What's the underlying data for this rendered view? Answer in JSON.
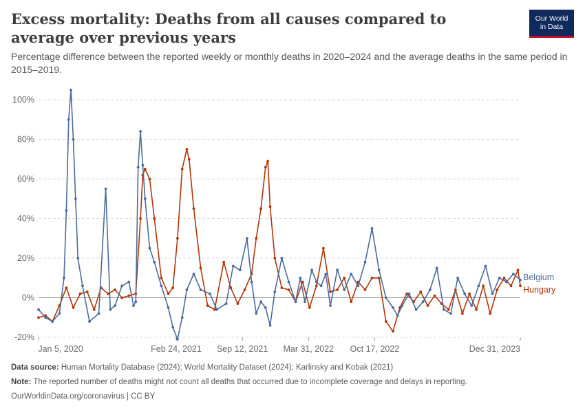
{
  "header": {
    "title": "Excess mortality: Deaths from all causes compared to average over previous years",
    "subtitle": "Percentage difference between the reported weekly or monthly deaths in 2020–2024 and the average deaths in the same period in 2015–2019.",
    "logo_line1": "Our World",
    "logo_line2": "in Data"
  },
  "footer": {
    "source_label": "Data source:",
    "source_text": "Human Mortality Database (2024); World Mortality Dataset (2024); Karlinsky and Kobak (2021)",
    "note_label": "Note:",
    "note_text": "The reported number of deaths might not count all deaths that occurred due to incomplete coverage and delays in reporting.",
    "site": "OurWorldinData.org/coronavirus",
    "sep": "|",
    "license": "CC BY"
  },
  "colors": {
    "Belgium": "#4c6a9c",
    "Hungary": "#b13507",
    "grid": "#dddddd",
    "zero": "#9a9a9a"
  },
  "chart_data": {
    "type": "line",
    "title": "Excess mortality: Deaths from all causes compared to average over previous years",
    "ylim": [
      -20,
      105
    ],
    "ytick_values": [
      -20,
      0,
      20,
      40,
      60,
      80,
      100
    ],
    "ytick_labels": [
      "-20%",
      "0%",
      "20%",
      "40%",
      "60%",
      "80%",
      "100%"
    ],
    "xlim": [
      "2020-01-05",
      "2023-12-31"
    ],
    "xtick_values": [
      "2020-01-05",
      "2021-02-24",
      "2021-09-12",
      "2022-03-31",
      "2022-10-17",
      "2023-12-31"
    ],
    "xtick_labels": [
      "Jan 5, 2020",
      "Feb 24, 2021",
      "Sep 12, 2021",
      "Mar 31, 2022",
      "Oct 17, 2022",
      "Dec 31, 2023"
    ],
    "grid": "horizontal dashed",
    "legend": "inline labels at right end of lines",
    "series": [
      {
        "name": "Belgium",
        "color": "#4c6a9c",
        "x": [
          "2020-01-05",
          "2020-01-26",
          "2020-02-16",
          "2020-03-08",
          "2020-03-22",
          "2020-03-29",
          "2020-04-05",
          "2020-04-12",
          "2020-04-19",
          "2020-04-26",
          "2020-05-03",
          "2020-05-17",
          "2020-06-07",
          "2020-07-05",
          "2020-07-26",
          "2020-08-09",
          "2020-08-23",
          "2020-09-13",
          "2020-10-04",
          "2020-10-18",
          "2020-10-25",
          "2020-11-01",
          "2020-11-08",
          "2020-11-15",
          "2020-11-22",
          "2020-12-06",
          "2020-12-20",
          "2021-01-10",
          "2021-01-31",
          "2021-02-14",
          "2021-02-28",
          "2021-03-14",
          "2021-03-28",
          "2021-04-18",
          "2021-05-09",
          "2021-06-06",
          "2021-06-27",
          "2021-07-25",
          "2021-08-15",
          "2021-09-05",
          "2021-09-26",
          "2021-10-10",
          "2021-10-24",
          "2021-11-07",
          "2021-11-21",
          "2021-12-05",
          "2021-12-19",
          "2022-01-09",
          "2022-01-30",
          "2022-02-20",
          "2022-03-06",
          "2022-03-20",
          "2022-04-10",
          "2022-04-24",
          "2022-05-08",
          "2022-05-22",
          "2022-06-05",
          "2022-06-26",
          "2022-07-17",
          "2022-08-07",
          "2022-08-28",
          "2022-09-18",
          "2022-10-09",
          "2022-10-30",
          "2022-11-20",
          "2022-12-11",
          "2022-12-25",
          "2023-01-08",
          "2023-01-29",
          "2023-02-19",
          "2023-03-12",
          "2023-04-02",
          "2023-04-23",
          "2023-05-14",
          "2023-06-04",
          "2023-06-25",
          "2023-07-16",
          "2023-08-06",
          "2023-08-27",
          "2023-09-17",
          "2023-10-08",
          "2023-10-29",
          "2023-11-19",
          "2023-12-10",
          "2023-12-31"
        ],
        "y": [
          -6,
          -10,
          -12,
          -8,
          10,
          44,
          90,
          105,
          80,
          50,
          20,
          6,
          -12,
          -8,
          55,
          -6,
          -4,
          6,
          8,
          -4,
          -2,
          66,
          84,
          67,
          50,
          25,
          18,
          6,
          -5,
          -15,
          -21,
          -10,
          4,
          12,
          4,
          2,
          -6,
          -3,
          16,
          14,
          30,
          8,
          -8,
          -2,
          -5,
          -14,
          3,
          20,
          8,
          -2,
          10,
          -2,
          14,
          8,
          6,
          12,
          -4,
          14,
          4,
          12,
          6,
          18,
          35,
          14,
          0,
          -5,
          -9,
          -4,
          2,
          -6,
          -2,
          4,
          15,
          -6,
          -8,
          10,
          2,
          -4,
          6,
          16,
          2,
          10,
          8,
          12,
          9
        ]
      },
      {
        "name": "Hungary",
        "color": "#b13507",
        "x": [
          "2020-01-05",
          "2020-01-26",
          "2020-02-16",
          "2020-03-08",
          "2020-03-29",
          "2020-04-19",
          "2020-05-10",
          "2020-05-31",
          "2020-06-21",
          "2020-07-12",
          "2020-08-02",
          "2020-08-23",
          "2020-09-13",
          "2020-10-04",
          "2020-10-25",
          "2020-11-08",
          "2020-11-15",
          "2020-11-22",
          "2020-12-06",
          "2020-12-20",
          "2021-01-10",
          "2021-01-31",
          "2021-02-14",
          "2021-02-28",
          "2021-03-14",
          "2021-03-28",
          "2021-04-04",
          "2021-04-18",
          "2021-05-09",
          "2021-05-30",
          "2021-06-20",
          "2021-07-18",
          "2021-08-08",
          "2021-08-29",
          "2021-09-19",
          "2021-10-10",
          "2021-10-24",
          "2021-11-07",
          "2021-11-21",
          "2021-11-28",
          "2021-12-05",
          "2021-12-19",
          "2022-01-09",
          "2022-01-30",
          "2022-02-20",
          "2022-03-13",
          "2022-04-03",
          "2022-04-24",
          "2022-05-15",
          "2022-06-05",
          "2022-06-26",
          "2022-07-17",
          "2022-08-07",
          "2022-08-28",
          "2022-09-18",
          "2022-10-09",
          "2022-10-30",
          "2022-11-20",
          "2022-12-11",
          "2023-01-01",
          "2023-01-22",
          "2023-02-12",
          "2023-03-05",
          "2023-03-26",
          "2023-04-16",
          "2023-05-07",
          "2023-05-28",
          "2023-06-18",
          "2023-07-09",
          "2023-07-30",
          "2023-08-20",
          "2023-09-10",
          "2023-10-01",
          "2023-10-22",
          "2023-11-12",
          "2023-12-03",
          "2023-12-24",
          "2023-12-31"
        ],
        "y": [
          -10,
          -9,
          -12,
          -4,
          5,
          -5,
          2,
          3,
          -6,
          5,
          2,
          4,
          0,
          1,
          2,
          40,
          62,
          65,
          60,
          40,
          10,
          2,
          5,
          30,
          65,
          75,
          70,
          45,
          15,
          -4,
          -6,
          18,
          5,
          -3,
          4,
          12,
          30,
          45,
          66,
          69,
          46,
          20,
          5,
          4,
          -2,
          8,
          -5,
          6,
          25,
          3,
          4,
          10,
          -2,
          8,
          4,
          10,
          10,
          -12,
          -17,
          -5,
          2,
          -2,
          3,
          -4,
          1,
          -3,
          -6,
          4,
          -8,
          2,
          -6,
          6,
          -8,
          4,
          10,
          6,
          14,
          6
        ]
      }
    ]
  }
}
